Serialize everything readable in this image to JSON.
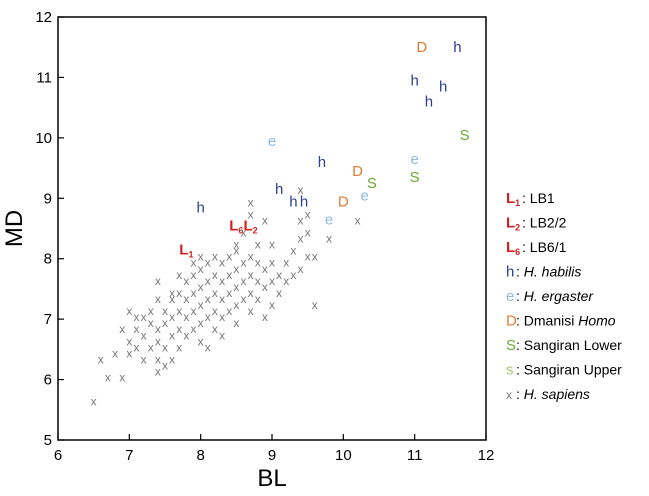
{
  "chart_data": {
    "type": "scatter",
    "title": "",
    "xlabel": "BL",
    "ylabel": "MD",
    "xlim": [
      6,
      12
    ],
    "ylim": [
      5,
      12
    ],
    "xticks": [
      "6",
      "7",
      "8",
      "9",
      "10",
      "11",
      "12"
    ],
    "yticks": [
      "5",
      "6",
      "7",
      "8",
      "9",
      "10",
      "11",
      "12"
    ],
    "grid": false,
    "legend_placement": "right",
    "series": [
      {
        "name": "LB1",
        "marker_text": "L1",
        "color": "#d42020",
        "points": [
          [
            7.8,
            8.15
          ]
        ]
      },
      {
        "name": "LB2/2",
        "marker_text": "L2",
        "color": "#d42020",
        "points": [
          [
            8.7,
            8.55
          ]
        ]
      },
      {
        "name": "LB6/1",
        "marker_text": "L6",
        "color": "#d42020",
        "points": [
          [
            8.5,
            8.55
          ]
        ]
      },
      {
        "name": "H. habilis",
        "marker_text": "h",
        "color": "#2e3f8f",
        "points": [
          [
            8.0,
            8.85
          ],
          [
            9.1,
            9.15
          ],
          [
            9.3,
            8.95
          ],
          [
            9.45,
            8.95
          ],
          [
            9.7,
            9.6
          ],
          [
            11.0,
            10.95
          ],
          [
            11.2,
            10.6
          ],
          [
            11.4,
            10.85
          ],
          [
            11.6,
            11.5
          ]
        ]
      },
      {
        "name": "H. ergaster",
        "marker_text": "e",
        "color": "#8fb8e0",
        "points": [
          [
            9.0,
            9.95
          ],
          [
            9.8,
            8.65
          ],
          [
            10.3,
            9.05
          ],
          [
            11.0,
            9.65
          ]
        ]
      },
      {
        "name": "Dmanisi Homo",
        "marker_text": "D",
        "color": "#e57a30",
        "points": [
          [
            10.0,
            8.95
          ],
          [
            10.2,
            9.45
          ],
          [
            11.1,
            11.5
          ]
        ]
      },
      {
        "name": "Sangiran Lower",
        "marker_text": "S",
        "color": "#6aa830",
        "points": [
          [
            10.4,
            9.25
          ],
          [
            11.0,
            9.35
          ],
          [
            11.7,
            10.05
          ]
        ]
      },
      {
        "name": "Sangiran Upper",
        "marker_text": "s",
        "color": "#a8c86a",
        "points": []
      },
      {
        "name": "H. sapiens",
        "marker_text": "x",
        "color": "#7a7a7a",
        "points": [
          [
            6.5,
            5.65
          ],
          [
            6.6,
            6.35
          ],
          [
            6.7,
            6.05
          ],
          [
            6.8,
            6.45
          ],
          [
            6.9,
            6.05
          ],
          [
            6.9,
            6.85
          ],
          [
            7.0,
            6.45
          ],
          [
            7.0,
            6.65
          ],
          [
            7.0,
            7.15
          ],
          [
            7.1,
            6.55
          ],
          [
            7.1,
            6.85
          ],
          [
            7.1,
            7.05
          ],
          [
            7.2,
            6.35
          ],
          [
            7.2,
            6.75
          ],
          [
            7.2,
            7.05
          ],
          [
            7.3,
            6.55
          ],
          [
            7.3,
            6.95
          ],
          [
            7.3,
            7.15
          ],
          [
            7.4,
            6.15
          ],
          [
            7.4,
            6.35
          ],
          [
            7.4,
            6.65
          ],
          [
            7.4,
            6.85
          ],
          [
            7.4,
            7.35
          ],
          [
            7.4,
            7.65
          ],
          [
            7.5,
            6.25
          ],
          [
            7.5,
            6.55
          ],
          [
            7.5,
            6.95
          ],
          [
            7.5,
            7.15
          ],
          [
            7.6,
            6.35
          ],
          [
            7.6,
            6.75
          ],
          [
            7.6,
            7.05
          ],
          [
            7.6,
            7.35
          ],
          [
            7.6,
            7.45
          ],
          [
            7.7,
            6.55
          ],
          [
            7.7,
            6.85
          ],
          [
            7.7,
            7.15
          ],
          [
            7.7,
            7.45
          ],
          [
            7.7,
            7.75
          ],
          [
            7.8,
            6.75
          ],
          [
            7.8,
            7.05
          ],
          [
            7.8,
            7.35
          ],
          [
            7.8,
            7.65
          ],
          [
            7.9,
            6.85
          ],
          [
            7.9,
            7.15
          ],
          [
            7.9,
            7.45
          ],
          [
            7.9,
            7.75
          ],
          [
            7.9,
            7.95
          ],
          [
            8.0,
            6.65
          ],
          [
            8.0,
            6.95
          ],
          [
            8.0,
            7.25
          ],
          [
            8.0,
            7.55
          ],
          [
            8.0,
            7.85
          ],
          [
            8.0,
            8.05
          ],
          [
            8.1,
            6.55
          ],
          [
            8.1,
            7.05
          ],
          [
            8.1,
            7.35
          ],
          [
            8.1,
            7.65
          ],
          [
            8.1,
            7.95
          ],
          [
            8.2,
            6.85
          ],
          [
            8.2,
            7.15
          ],
          [
            8.2,
            7.45
          ],
          [
            8.2,
            7.75
          ],
          [
            8.2,
            8.05
          ],
          [
            8.3,
            6.75
          ],
          [
            8.3,
            7.05
          ],
          [
            8.3,
            7.35
          ],
          [
            8.3,
            7.65
          ],
          [
            8.3,
            7.95
          ],
          [
            8.4,
            7.15
          ],
          [
            8.4,
            7.45
          ],
          [
            8.4,
            7.75
          ],
          [
            8.4,
            8.05
          ],
          [
            8.5,
            6.95
          ],
          [
            8.5,
            7.25
          ],
          [
            8.5,
            7.55
          ],
          [
            8.5,
            7.85
          ],
          [
            8.5,
            8.15
          ],
          [
            8.5,
            8.25
          ],
          [
            8.6,
            7.35
          ],
          [
            8.6,
            7.65
          ],
          [
            8.6,
            7.95
          ],
          [
            8.6,
            8.45
          ],
          [
            8.7,
            7.15
          ],
          [
            8.7,
            7.45
          ],
          [
            8.7,
            7.75
          ],
          [
            8.7,
            8.05
          ],
          [
            8.7,
            8.75
          ],
          [
            8.7,
            8.95
          ],
          [
            8.8,
            7.35
          ],
          [
            8.8,
            7.65
          ],
          [
            8.8,
            7.95
          ],
          [
            8.8,
            8.25
          ],
          [
            8.9,
            7.05
          ],
          [
            8.9,
            7.55
          ],
          [
            8.9,
            7.85
          ],
          [
            8.9,
            8.65
          ],
          [
            9.0,
            7.25
          ],
          [
            9.0,
            7.65
          ],
          [
            9.0,
            7.95
          ],
          [
            9.0,
            8.25
          ],
          [
            9.1,
            7.45
          ],
          [
            9.1,
            7.75
          ],
          [
            9.2,
            7.65
          ],
          [
            9.2,
            7.95
          ],
          [
            9.3,
            7.75
          ],
          [
            9.3,
            8.15
          ],
          [
            9.4,
            7.85
          ],
          [
            9.4,
            8.35
          ],
          [
            9.4,
            8.65
          ],
          [
            9.4,
            9.15
          ],
          [
            9.5,
            8.05
          ],
          [
            9.5,
            8.45
          ],
          [
            9.5,
            8.75
          ],
          [
            9.6,
            8.05
          ],
          [
            9.6,
            7.25
          ],
          [
            9.8,
            8.35
          ],
          [
            10.2,
            8.65
          ]
        ]
      }
    ]
  },
  "legend": {
    "items": [
      {
        "symbol": "L",
        "sub": "1",
        "label": "LB1",
        "italic": false,
        "color": "#d42020"
      },
      {
        "symbol": "L",
        "sub": "2",
        "label": "LB2/2",
        "italic": false,
        "color": "#d42020"
      },
      {
        "symbol": "L",
        "sub": "6",
        "label": "LB6/1",
        "italic": false,
        "color": "#d42020"
      },
      {
        "symbol": "h",
        "sub": "",
        "label": "H. habilis",
        "italic": true,
        "color": "#2e3f8f"
      },
      {
        "symbol": "e",
        "sub": "",
        "label": "H. ergaster",
        "italic": true,
        "color": "#8fb8e0"
      },
      {
        "symbol": "D",
        "sub": "",
        "label": "Dmanisi ",
        "label_italic": "Homo",
        "italic": false,
        "color": "#e57a30"
      },
      {
        "symbol": "S",
        "sub": "",
        "label": "Sangiran Lower",
        "italic": false,
        "color": "#6aa830"
      },
      {
        "symbol": "s",
        "sub": "",
        "label": "Sangiran Upper",
        "italic": false,
        "color": "#a8c86a"
      },
      {
        "symbol": "x",
        "sub": "",
        "label": "H. sapiens",
        "italic": true,
        "color": "#7a7a7a"
      }
    ]
  }
}
